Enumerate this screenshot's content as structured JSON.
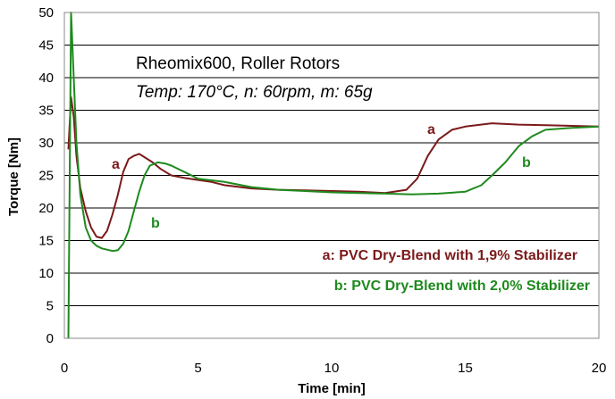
{
  "chart_data": {
    "type": "line",
    "title": "",
    "xlabel": "Time [min]",
    "ylabel": "Torque [Nm]",
    "xlim": [
      0,
      20
    ],
    "ylim": [
      0,
      50
    ],
    "xticks": [
      "0",
      "5",
      "10",
      "15",
      "20"
    ],
    "yticks": [
      "0",
      "5",
      "10",
      "15",
      "20",
      "25",
      "30",
      "35",
      "40",
      "45",
      "50"
    ],
    "grid": "horizontal",
    "annotations": [
      "Rheomix600, Roller Rotors",
      "Temp: 170°C, n: 60rpm, m: 65g"
    ],
    "legend": [
      "a: PVC Dry-Blend with 1,9% Stabilizer",
      "b: PVC Dry-Blend with 2,0% Stabilizer"
    ],
    "series": [
      {
        "label": "a",
        "color": "#7b1a1a",
        "x": [
          0.15,
          0.25,
          0.35,
          0.45,
          0.6,
          0.8,
          1.0,
          1.2,
          1.4,
          1.6,
          1.8,
          2.0,
          2.2,
          2.4,
          2.6,
          2.8,
          3.0,
          3.3,
          3.6,
          4.0,
          4.5,
          5.0,
          5.5,
          6.0,
          7.0,
          8.0,
          9.0,
          10.0,
          11.0,
          12.0,
          12.8,
          13.2,
          13.6,
          14.0,
          14.5,
          15.0,
          16.0,
          17.0,
          18.0,
          19.0,
          20.0
        ],
        "y": [
          29,
          37,
          34,
          28,
          23,
          19.5,
          17,
          15.6,
          15.4,
          16.5,
          19,
          22,
          25.5,
          27.5,
          28,
          28.3,
          27.8,
          27,
          26,
          25,
          24.6,
          24.3,
          24,
          23.5,
          23,
          22.8,
          22.7,
          22.6,
          22.5,
          22.3,
          22.8,
          24.5,
          28,
          30.5,
          32,
          32.5,
          33,
          32.8,
          32.7,
          32.6,
          32.5
        ]
      },
      {
        "label": "b",
        "color": "#1e8a1e",
        "x": [
          0.15,
          0.25,
          0.35,
          0.45,
          0.6,
          0.8,
          1.0,
          1.2,
          1.4,
          1.6,
          1.8,
          2.0,
          2.2,
          2.4,
          2.6,
          2.8,
          3.0,
          3.2,
          3.5,
          3.8,
          4.0,
          4.5,
          5.0,
          6.0,
          7.0,
          8.0,
          9.0,
          10.0,
          11.0,
          12.0,
          13.0,
          14.0,
          15.0,
          15.6,
          16.0,
          16.5,
          17.0,
          17.5,
          18.0,
          19.0,
          20.0
        ],
        "y": [
          0,
          50,
          40,
          30,
          22,
          17,
          15,
          14.2,
          13.8,
          13.6,
          13.4,
          13.5,
          14.5,
          16.5,
          19.5,
          22.5,
          25,
          26.5,
          27,
          26.8,
          26.5,
          25.5,
          24.5,
          24,
          23.2,
          22.8,
          22.6,
          22.4,
          22.3,
          22.2,
          22.1,
          22.2,
          22.5,
          23.5,
          25,
          27,
          29.5,
          31,
          32,
          32.3,
          32.5
        ]
      }
    ],
    "curve_labels": [
      {
        "text": "a",
        "color": "#7b1a1a"
      },
      {
        "text": "b",
        "color": "#1e8a1e"
      },
      {
        "text": "a",
        "color": "#7b1a1a"
      },
      {
        "text": "b",
        "color": "#1e8a1e"
      }
    ]
  }
}
